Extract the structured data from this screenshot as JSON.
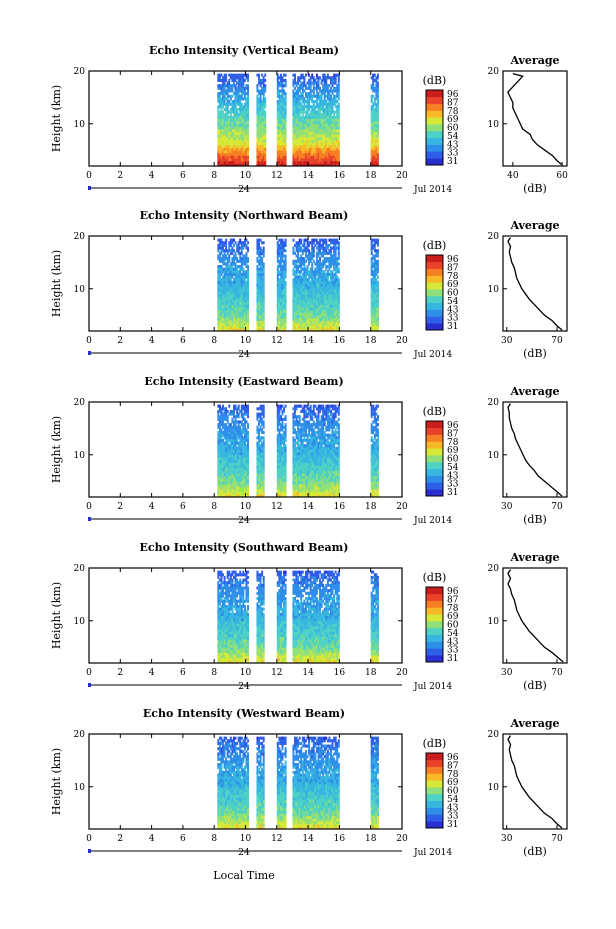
{
  "figure": {
    "bottom_label": "Local Time",
    "date_label": "Jul 2014",
    "day_label": "24",
    "colorbar_unit": "(dB)",
    "colorbar_ticks": [
      "96",
      "87",
      "78",
      "69",
      "60",
      "54",
      "43",
      "33",
      "31"
    ],
    "colormap": [
      "#2a2ecf",
      "#2f5fe6",
      "#2f8ee8",
      "#37b7e0",
      "#4fd1c5",
      "#8fe07a",
      "#d6e83a",
      "#f7b928",
      "#f57f25",
      "#e8432a",
      "#c81e1e"
    ],
    "trace_color": "#000000"
  },
  "chart_data": [
    {
      "type": "heatmap",
      "title": "Echo Intensity (Vertical Beam)",
      "xlabel": "",
      "ylabel": "Height (km)",
      "xlim": [
        0,
        20
      ],
      "ylim": [
        2,
        20
      ],
      "x_ticks": [
        "0",
        "2",
        "4",
        "6",
        "8",
        "10",
        "12",
        "14",
        "16",
        "18",
        "20"
      ],
      "y_ticks": [
        "10",
        "20"
      ],
      "data_columns": [
        [
          8.2,
          10.2
        ],
        [
          10.7,
          11.3
        ],
        [
          12.0,
          12.6
        ],
        [
          13.0,
          16.0
        ],
        [
          18.0,
          18.5
        ]
      ],
      "intensity_profile": [
        [
          2,
          0.96
        ],
        [
          3,
          0.85
        ],
        [
          4,
          0.78
        ],
        [
          5,
          0.7
        ],
        [
          6,
          0.6
        ],
        [
          8,
          0.52
        ],
        [
          10,
          0.45
        ],
        [
          12,
          0.38
        ],
        [
          14,
          0.3
        ],
        [
          16,
          0.22
        ],
        [
          18,
          0.14
        ],
        [
          19,
          0.1
        ]
      ],
      "average": {
        "title": "Average",
        "xlabel": "(dB)",
        "xlim": [
          36,
          62
        ],
        "x_ticks": [
          "40",
          "60"
        ],
        "ylim": [
          2,
          20
        ],
        "y_ticks": [
          "10",
          "20"
        ],
        "profile": [
          [
            2.2,
            60
          ],
          [
            3,
            58
          ],
          [
            4,
            56
          ],
          [
            5,
            53
          ],
          [
            6,
            50
          ],
          [
            7,
            48
          ],
          [
            8,
            47
          ],
          [
            9,
            44
          ],
          [
            10,
            43
          ],
          [
            11,
            42
          ],
          [
            12,
            41
          ],
          [
            13,
            40
          ],
          [
            14,
            40
          ],
          [
            15,
            39
          ],
          [
            16,
            38
          ],
          [
            17,
            40
          ],
          [
            18,
            42
          ],
          [
            19,
            44
          ],
          [
            19.5,
            40
          ]
        ]
      }
    },
    {
      "type": "heatmap",
      "title": "Echo Intensity (Northward Beam)",
      "xlabel": "",
      "ylabel": "Height (km)",
      "xlim": [
        0,
        20
      ],
      "ylim": [
        2,
        20
      ],
      "x_ticks": [
        "0",
        "2",
        "4",
        "6",
        "8",
        "10",
        "12",
        "14",
        "16",
        "18",
        "20"
      ],
      "y_ticks": [
        "10",
        "20"
      ],
      "data_columns": [
        [
          8.2,
          10.2
        ],
        [
          10.7,
          11.2
        ],
        [
          12.0,
          12.6
        ],
        [
          13.0,
          16.0
        ],
        [
          18.0,
          18.5
        ]
      ],
      "intensity_profile": [
        [
          2,
          0.62
        ],
        [
          3,
          0.55
        ],
        [
          4,
          0.5
        ],
        [
          5,
          0.45
        ],
        [
          6,
          0.42
        ],
        [
          8,
          0.38
        ],
        [
          10,
          0.32
        ],
        [
          12,
          0.28
        ],
        [
          14,
          0.24
        ],
        [
          16,
          0.2
        ],
        [
          18,
          0.15
        ],
        [
          19,
          0.1
        ]
      ],
      "average": {
        "title": "Average",
        "xlabel": "(dB)",
        "xlim": [
          27,
          78
        ],
        "x_ticks": [
          "30",
          "70"
        ],
        "ylim": [
          2,
          20
        ],
        "y_ticks": [
          "10",
          "20"
        ],
        "profile": [
          [
            2.2,
            74
          ],
          [
            3,
            70
          ],
          [
            4,
            66
          ],
          [
            5,
            60
          ],
          [
            6,
            56
          ],
          [
            7,
            52
          ],
          [
            8,
            48
          ],
          [
            9,
            45
          ],
          [
            10,
            42
          ],
          [
            11,
            40
          ],
          [
            12,
            38
          ],
          [
            13,
            37
          ],
          [
            14,
            36
          ],
          [
            15,
            34
          ],
          [
            16,
            33
          ],
          [
            17,
            32
          ],
          [
            18,
            33
          ],
          [
            19,
            31
          ],
          [
            19.7,
            33
          ]
        ]
      }
    },
    {
      "type": "heatmap",
      "title": "Echo Intensity (Eastward Beam)",
      "xlabel": "",
      "ylabel": "Height (km)",
      "xlim": [
        0,
        20
      ],
      "ylim": [
        2,
        20
      ],
      "x_ticks": [
        "0",
        "2",
        "4",
        "6",
        "8",
        "10",
        "12",
        "14",
        "16",
        "18",
        "20"
      ],
      "y_ticks": [
        "10",
        "20"
      ],
      "data_columns": [
        [
          8.2,
          10.2
        ],
        [
          10.7,
          11.2
        ],
        [
          12.0,
          12.6
        ],
        [
          13.0,
          16.0
        ],
        [
          18.0,
          18.5
        ]
      ],
      "intensity_profile": [
        [
          2,
          0.62
        ],
        [
          3,
          0.55
        ],
        [
          4,
          0.5
        ],
        [
          5,
          0.45
        ],
        [
          6,
          0.42
        ],
        [
          8,
          0.38
        ],
        [
          10,
          0.32
        ],
        [
          12,
          0.28
        ],
        [
          14,
          0.24
        ],
        [
          16,
          0.2
        ],
        [
          18,
          0.15
        ],
        [
          19,
          0.1
        ]
      ],
      "average": {
        "title": "Average",
        "xlabel": "(dB)",
        "xlim": [
          27,
          78
        ],
        "x_ticks": [
          "30",
          "70"
        ],
        "ylim": [
          2,
          20
        ],
        "y_ticks": [
          "10",
          "20"
        ],
        "profile": [
          [
            2.2,
            74
          ],
          [
            3,
            70
          ],
          [
            4,
            65
          ],
          [
            5,
            60
          ],
          [
            6,
            55
          ],
          [
            7,
            52
          ],
          [
            8,
            48
          ],
          [
            9,
            45
          ],
          [
            10,
            43
          ],
          [
            11,
            41
          ],
          [
            12,
            39
          ],
          [
            13,
            37
          ],
          [
            14,
            36
          ],
          [
            15,
            34
          ],
          [
            16,
            33
          ],
          [
            17,
            32
          ],
          [
            18,
            32
          ],
          [
            19,
            31
          ],
          [
            19.7,
            33
          ]
        ]
      }
    },
    {
      "type": "heatmap",
      "title": "Echo Intensity (Southward Beam)",
      "xlabel": "",
      "ylabel": "Height (km)",
      "xlim": [
        0,
        20
      ],
      "ylim": [
        2,
        20
      ],
      "x_ticks": [
        "0",
        "2",
        "4",
        "6",
        "8",
        "10",
        "12",
        "14",
        "16",
        "18",
        "20"
      ],
      "y_ticks": [
        "10",
        "20"
      ],
      "data_columns": [
        [
          8.2,
          10.2
        ],
        [
          10.7,
          11.2
        ],
        [
          12.0,
          12.6
        ],
        [
          13.0,
          16.0
        ],
        [
          18.0,
          18.5
        ]
      ],
      "intensity_profile": [
        [
          2,
          0.62
        ],
        [
          3,
          0.55
        ],
        [
          4,
          0.5
        ],
        [
          5,
          0.45
        ],
        [
          6,
          0.42
        ],
        [
          8,
          0.38
        ],
        [
          10,
          0.32
        ],
        [
          12,
          0.28
        ],
        [
          14,
          0.24
        ],
        [
          16,
          0.2
        ],
        [
          18,
          0.15
        ],
        [
          19,
          0.1
        ]
      ],
      "average": {
        "title": "Average",
        "xlabel": "(dB)",
        "xlim": [
          27,
          78
        ],
        "x_ticks": [
          "30",
          "70"
        ],
        "ylim": [
          2,
          20
        ],
        "y_ticks": [
          "10",
          "20"
        ],
        "profile": [
          [
            2.2,
            75
          ],
          [
            3,
            71
          ],
          [
            4,
            66
          ],
          [
            5,
            60
          ],
          [
            6,
            56
          ],
          [
            7,
            52
          ],
          [
            8,
            48
          ],
          [
            9,
            45
          ],
          [
            10,
            42
          ],
          [
            11,
            40
          ],
          [
            12,
            38
          ],
          [
            13,
            37
          ],
          [
            14,
            36
          ],
          [
            15,
            34
          ],
          [
            16,
            33
          ],
          [
            17,
            31
          ],
          [
            18,
            33
          ],
          [
            19,
            31
          ],
          [
            19.7,
            33
          ]
        ]
      }
    },
    {
      "type": "heatmap",
      "title": "Echo Intensity (Westward Beam)",
      "xlabel": "",
      "ylabel": "Height (km)",
      "xlim": [
        0,
        20
      ],
      "ylim": [
        2,
        20
      ],
      "x_ticks": [
        "0",
        "2",
        "4",
        "6",
        "8",
        "10",
        "12",
        "14",
        "16",
        "18",
        "20"
      ],
      "y_ticks": [
        "10",
        "20"
      ],
      "data_columns": [
        [
          8.2,
          10.2
        ],
        [
          10.7,
          11.2
        ],
        [
          12.0,
          12.6
        ],
        [
          13.0,
          16.0
        ],
        [
          18.0,
          18.5
        ]
      ],
      "intensity_profile": [
        [
          2,
          0.62
        ],
        [
          3,
          0.55
        ],
        [
          4,
          0.5
        ],
        [
          5,
          0.45
        ],
        [
          6,
          0.42
        ],
        [
          8,
          0.38
        ],
        [
          10,
          0.32
        ],
        [
          12,
          0.28
        ],
        [
          14,
          0.24
        ],
        [
          16,
          0.2
        ],
        [
          18,
          0.15
        ],
        [
          19,
          0.1
        ]
      ],
      "average": {
        "title": "Average",
        "xlabel": "(dB)",
        "xlim": [
          27,
          78
        ],
        "x_ticks": [
          "30",
          "70"
        ],
        "ylim": [
          2,
          20
        ],
        "y_ticks": [
          "10",
          "20"
        ],
        "profile": [
          [
            2.2,
            74
          ],
          [
            3,
            70
          ],
          [
            4,
            66
          ],
          [
            5,
            60
          ],
          [
            6,
            56
          ],
          [
            7,
            52
          ],
          [
            8,
            48
          ],
          [
            9,
            45
          ],
          [
            10,
            42
          ],
          [
            11,
            40
          ],
          [
            12,
            38
          ],
          [
            13,
            37
          ],
          [
            14,
            36
          ],
          [
            15,
            34
          ],
          [
            16,
            33
          ],
          [
            17,
            32
          ],
          [
            18,
            33
          ],
          [
            19,
            31
          ],
          [
            19.7,
            33
          ]
        ]
      }
    }
  ]
}
